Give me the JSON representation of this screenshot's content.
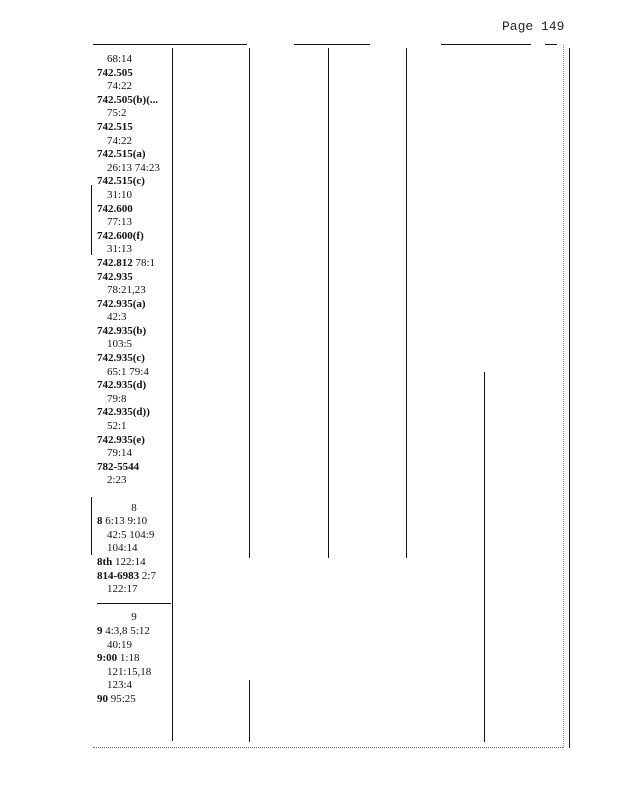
{
  "page_label": "Page 149",
  "lines": [
    {
      "ind": true,
      "b": "",
      "t": "68:14"
    },
    {
      "b": "742.505",
      "t": ""
    },
    {
      "ind": true,
      "b": "",
      "t": "74:22"
    },
    {
      "b": "742.505(b)(...",
      "t": ""
    },
    {
      "ind": true,
      "b": "",
      "t": "75:2"
    },
    {
      "b": "742.515",
      "t": ""
    },
    {
      "ind": true,
      "b": "",
      "t": "74:22"
    },
    {
      "b": "742.515(a)",
      "t": ""
    },
    {
      "ind": true,
      "b": "",
      "t": "26:13 74:23"
    },
    {
      "b": "742.515(c)",
      "t": ""
    },
    {
      "ind": true,
      "b": "",
      "t": "31:10"
    },
    {
      "b": "742.600",
      "t": ""
    },
    {
      "ind": true,
      "b": "",
      "t": "77:13"
    },
    {
      "b": "742.600(f)",
      "t": ""
    },
    {
      "ind": true,
      "b": "",
      "t": "31:13"
    },
    {
      "b": "742.812",
      "t": " 78:1"
    },
    {
      "b": "742.935",
      "t": ""
    },
    {
      "ind": true,
      "b": "",
      "t": "78:21,23"
    },
    {
      "b": "742.935(a)",
      "t": ""
    },
    {
      "ind": true,
      "b": "",
      "t": "42:3"
    },
    {
      "b": "742.935(b)",
      "t": ""
    },
    {
      "ind": true,
      "b": "",
      "t": "103:5"
    },
    {
      "b": "742.935(c)",
      "t": ""
    },
    {
      "ind": true,
      "b": "",
      "t": "65:1 79:4"
    },
    {
      "b": "742.935(d)",
      "t": ""
    },
    {
      "ind": true,
      "b": "",
      "t": "79:8"
    },
    {
      "b": "742.935(d))",
      "t": ""
    },
    {
      "ind": true,
      "b": "",
      "t": "52:1"
    },
    {
      "b": "742.935(e)",
      "t": ""
    },
    {
      "ind": true,
      "b": "",
      "t": "79:14"
    },
    {
      "b": "782-5544",
      "t": ""
    },
    {
      "ind": true,
      "b": "",
      "t": "2:23"
    },
    {
      "b": "",
      "t": ""
    },
    {
      "hd": true,
      "b": "",
      "t": "8"
    },
    {
      "b": "8",
      "t": " 6:13 9:10"
    },
    {
      "ind": true,
      "b": "",
      "t": "42:5 104:9"
    },
    {
      "ind": true,
      "b": "",
      "t": "104:14"
    },
    {
      "b": "8th",
      "t": " 122:14"
    },
    {
      "b": "814-6983",
      "t": " 2:7"
    },
    {
      "ind": true,
      "b": "",
      "t": "122:17"
    },
    {
      "sep": true,
      "b": "",
      "t": ""
    },
    {
      "hd": true,
      "b": "",
      "t": "9"
    },
    {
      "b": "9",
      "t": " 4:3,8 5:12"
    },
    {
      "ind": true,
      "b": "",
      "t": "40:19"
    },
    {
      "b": "9:00",
      "t": " 1:18"
    },
    {
      "ind": true,
      "b": "",
      "t": "121:15,18"
    },
    {
      "ind": true,
      "b": "",
      "t": "123:4"
    },
    {
      "b": "90",
      "t": " 95:25"
    }
  ]
}
